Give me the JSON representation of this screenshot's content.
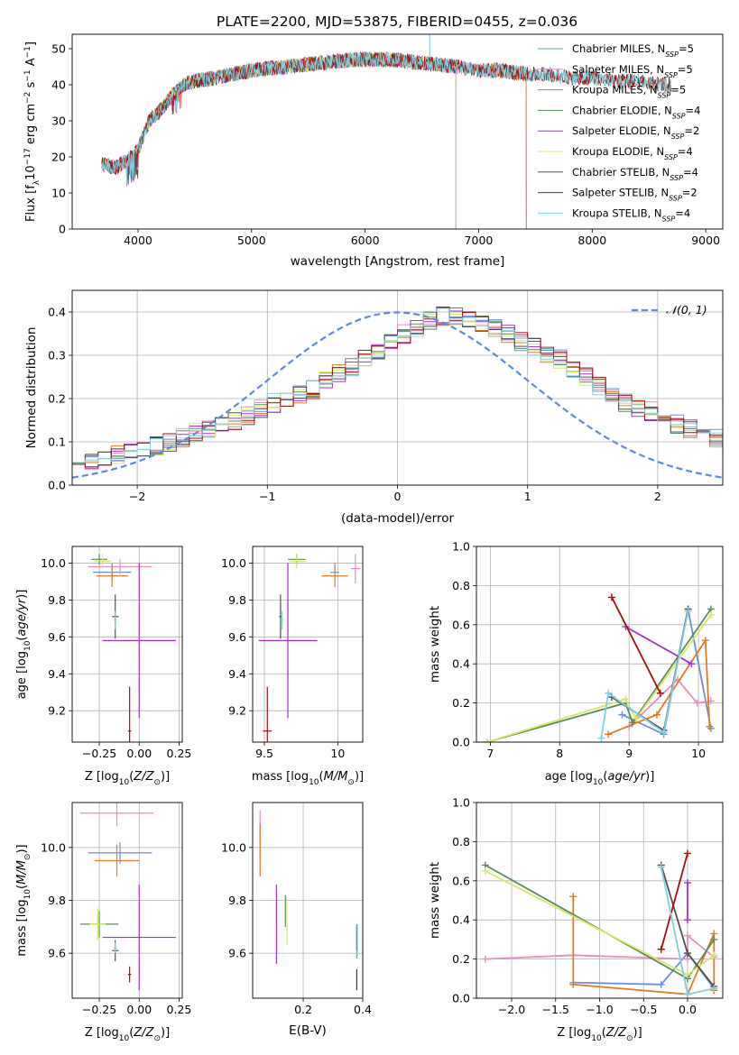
{
  "figure": {
    "title": "PLATE=2200, MJD=53875, FIBERID=0455, z=0.036"
  },
  "colors": {
    "Chabrier MILES": "#6a8fd8",
    "Salpeter MILES": "#e88cc0",
    "Kroupa MILES": "#e07b22",
    "Chabrier ELODIE": "#5a8a5a",
    "Salpeter ELODIE": "#a632c8",
    "Kroupa ELODIE": "#d8e860",
    "Chabrier STELIB": "#505050",
    "Salpeter STELIB": "#a01010",
    "Kroupa STELIB": "#80d0e0"
  },
  "chart_data": [
    {
      "id": "spectrum",
      "type": "line",
      "xlabel": "wavelength [Angstrom, rest frame]",
      "ylabel": "Flux [f_λ10^-17 erg cm^-2 s^-1 A^-1]",
      "xlim": [
        3420,
        9150
      ],
      "ylim": [
        0,
        54
      ],
      "xticks": [
        4000,
        5000,
        6000,
        7000,
        8000,
        9000
      ],
      "yticks": [
        0,
        10,
        20,
        30,
        40,
        50
      ],
      "grid": false,
      "legend_position": "top-right",
      "legend": [
        "Chabrier MILES, N_SSP=5",
        "Salpeter MILES, N_SSP=5",
        "Kroupa MILES, N_SSP=5",
        "Chabrier ELODIE, N_SSP=4",
        "Salpeter ELODIE, N_SSP=2",
        "Kroupa ELODIE, N_SSP=4",
        "Chabrier STELIB, N_SSP=4",
        "Salpeter STELIB, N_SSP=2",
        "Kroupa STELIB, N_SSP=4"
      ],
      "continuum": {
        "x": [
          3680,
          3800,
          3900,
          4000,
          4100,
          4200,
          4300,
          4400,
          4500,
          4700,
          5000,
          5300,
          5600,
          5900,
          6200,
          6500,
          6800,
          7000,
          7200,
          7400,
          7600,
          7800,
          8000,
          8200,
          8400,
          8600,
          8700
        ],
        "y": [
          18,
          17,
          19,
          22,
          30,
          33,
          37,
          40,
          41,
          42,
          44,
          45,
          46,
          47,
          47,
          46,
          45,
          44,
          44,
          43,
          43,
          42,
          42,
          41,
          41,
          40,
          40
        ],
        "extent": {
          "Chabrier MILES": [
            3680,
            7420
          ],
          "Salpeter MILES": [
            3680,
            7420
          ],
          "Kroupa MILES": [
            3680,
            7420
          ],
          "Chabrier ELODIE": [
            3680,
            6800
          ],
          "Salpeter ELODIE": [
            3680,
            6800
          ],
          "Kroupa ELODIE": [
            3680,
            6800
          ],
          "Chabrier STELIB": [
            3680,
            8700
          ],
          "Salpeter STELIB": [
            3680,
            8700
          ],
          "Kroupa STELIB": [
            3680,
            8700
          ]
        }
      }
    },
    {
      "id": "residuals",
      "type": "histogram",
      "xlabel": "(data-model)/error",
      "ylabel": "Normed distribution",
      "xlim": [
        -2.5,
        2.5
      ],
      "ylim": [
        0,
        0.45
      ],
      "xticks": [
        -2,
        -1,
        0,
        1,
        2
      ],
      "yticks": [
        0.0,
        0.1,
        0.2,
        0.3,
        0.4
      ],
      "grid": true,
      "legend_position": "top-right",
      "reference_curve": "𝒩(0, 1)",
      "bin_edges_start": -2.5,
      "bin_width": 0.1,
      "envelope": [
        0.05,
        0.055,
        0.06,
        0.07,
        0.075,
        0.08,
        0.09,
        0.1,
        0.11,
        0.12,
        0.13,
        0.14,
        0.15,
        0.16,
        0.175,
        0.19,
        0.2,
        0.21,
        0.22,
        0.24,
        0.26,
        0.27,
        0.29,
        0.31,
        0.33,
        0.35,
        0.36,
        0.38,
        0.39,
        0.39,
        0.38,
        0.37,
        0.36,
        0.35,
        0.33,
        0.32,
        0.3,
        0.29,
        0.27,
        0.25,
        0.23,
        0.21,
        0.19,
        0.18,
        0.17,
        0.15,
        0.14,
        0.13,
        0.12,
        0.11,
        0.1,
        0.09,
        0.09,
        0.08,
        0.075,
        0.07,
        0.065,
        0.06,
        0.055,
        0.05
      ]
    },
    {
      "id": "age-vs-Z",
      "type": "scatter",
      "xlabel": "Z [log10(Z/Z⊙)]",
      "ylabel": "age [log10(age/yr)]",
      "xlim": [
        -0.42,
        0.27
      ],
      "ylim": [
        9.03,
        10.09
      ],
      "xticks": [
        -0.25,
        0.0,
        0.25
      ],
      "xticklabels": [
        "−0.25",
        "0.00",
        "0.25"
      ],
      "yticks": [
        9.2,
        9.4,
        9.6,
        9.8,
        10.0
      ],
      "grid": true,
      "points": [
        {
          "model": "Chabrier MILES",
          "x": -0.17,
          "y": 9.95,
          "xerr": 0.12,
          "yerr": 0.05
        },
        {
          "model": "Salpeter MILES",
          "x": -0.12,
          "y": 9.98,
          "xerr": 0.2,
          "yerr": 0.04
        },
        {
          "model": "Kroupa MILES",
          "x": -0.17,
          "y": 9.93,
          "xerr": 0.1,
          "yerr": 0.06
        },
        {
          "model": "Chabrier ELODIE",
          "x": -0.25,
          "y": 10.02,
          "xerr": 0.05,
          "yerr": 0.03
        },
        {
          "model": "Salpeter ELODIE",
          "x": 0.0,
          "y": 9.58,
          "xerr": 0.23,
          "yerr": 0.42
        },
        {
          "model": "Kroupa ELODIE",
          "x": -0.23,
          "y": 10.01,
          "xerr": 0.05,
          "yerr": 0.04
        },
        {
          "model": "Chabrier STELIB",
          "x": -0.15,
          "y": 9.71,
          "xerr": 0.02,
          "yerr": 0.12
        },
        {
          "model": "Salpeter STELIB",
          "x": -0.06,
          "y": 9.09,
          "xerr": 0.01,
          "yerr": 0.24
        },
        {
          "model": "Kroupa STELIB",
          "x": -0.15,
          "y": 9.69,
          "xerr": 0.01,
          "yerr": 0.05
        }
      ]
    },
    {
      "id": "age-vs-mass",
      "type": "scatter",
      "xlabel": "mass [log10(M/M⊙)]",
      "ylabel": "",
      "xlim": [
        9.42,
        10.17
      ],
      "ylim": [
        9.03,
        10.09
      ],
      "xticks": [
        9.5,
        10.0
      ],
      "yticks": [
        9.2,
        9.4,
        9.6,
        9.8,
        10.0
      ],
      "grid": true,
      "points": [
        {
          "model": "Chabrier MILES",
          "x": 9.98,
          "y": 9.95,
          "xerr": 0.03,
          "yerr": 0.05
        },
        {
          "model": "Salpeter MILES",
          "x": 10.12,
          "y": 9.97,
          "xerr": 0.03,
          "yerr": 0.08
        },
        {
          "model": "Kroupa MILES",
          "x": 9.98,
          "y": 9.93,
          "xerr": 0.09,
          "yerr": 0.06
        },
        {
          "model": "Chabrier ELODIE",
          "x": 9.72,
          "y": 10.02,
          "xerr": 0.06,
          "yerr": 0.03
        },
        {
          "model": "Salpeter ELODIE",
          "x": 9.66,
          "y": 9.58,
          "xerr": 0.2,
          "yerr": 0.42
        },
        {
          "model": "Kroupa ELODIE",
          "x": 9.72,
          "y": 10.01,
          "xerr": 0.05,
          "yerr": 0.04
        },
        {
          "model": "Chabrier STELIB",
          "x": 9.61,
          "y": 9.71,
          "xerr": 0.01,
          "yerr": 0.12
        },
        {
          "model": "Salpeter STELIB",
          "x": 9.52,
          "y": 9.09,
          "xerr": 0.03,
          "yerr": 0.24
        },
        {
          "model": "Kroupa STELIB",
          "x": 9.62,
          "y": 9.69,
          "xerr": 0.01,
          "yerr": 0.05
        }
      ]
    },
    {
      "id": "weight-vs-age",
      "type": "line",
      "xlabel": "age [log10(age/yr)]",
      "ylabel": "mass weight",
      "xlim": [
        6.8,
        10.35
      ],
      "ylim": [
        0,
        1.0
      ],
      "xticks": [
        7,
        8,
        9,
        10
      ],
      "yticks": [
        0.0,
        0.2,
        0.4,
        0.6,
        0.8,
        1.0
      ],
      "grid": true,
      "series": [
        {
          "model": "Chabrier MILES",
          "x": [
            8.9,
            9.5,
            9.85,
            10.18
          ],
          "y": [
            0.14,
            0.04,
            0.68,
            0.07
          ]
        },
        {
          "model": "Salpeter MILES",
          "x": [
            9.0,
            9.7,
            9.98,
            10.18
          ],
          "y": [
            0.08,
            0.32,
            0.2,
            0.21
          ]
        },
        {
          "model": "Kroupa MILES",
          "x": [
            8.7,
            9.4,
            10.1,
            10.16
          ],
          "y": [
            0.04,
            0.14,
            0.52,
            0.08
          ]
        },
        {
          "model": "Chabrier ELODIE",
          "x": [
            6.95,
            8.95,
            9.05,
            10.18
          ],
          "y": [
            0.0,
            0.2,
            0.1,
            0.68
          ]
        },
        {
          "model": "Salpeter ELODIE",
          "x": [
            8.95,
            9.9
          ],
          "y": [
            0.59,
            0.4
          ]
        },
        {
          "model": "Kroupa ELODIE",
          "x": [
            6.95,
            8.95,
            9.1,
            10.18
          ],
          "y": [
            0.0,
            0.22,
            0.12,
            0.65
          ]
        },
        {
          "model": "Chabrier STELIB",
          "x": [
            8.75,
            9.5,
            9.85
          ],
          "y": [
            0.23,
            0.06,
            0.68
          ]
        },
        {
          "model": "Salpeter STELIB",
          "x": [
            8.75,
            9.45
          ],
          "y": [
            0.74,
            0.25
          ]
        },
        {
          "model": "Kroupa STELIB",
          "x": [
            8.6,
            8.7,
            9.5,
            9.85
          ],
          "y": [
            0.02,
            0.25,
            0.05,
            0.67
          ]
        }
      ]
    },
    {
      "id": "mass-vs-Z",
      "type": "scatter",
      "xlabel": "Z [log10(Z/Z⊙)]",
      "ylabel": "mass [log10(M/M⊙)]",
      "xlim": [
        -0.42,
        0.27
      ],
      "ylim": [
        9.43,
        10.17
      ],
      "xticks": [
        -0.25,
        0.0,
        0.25
      ],
      "xticklabels": [
        "−0.25",
        "0.00",
        "0.25"
      ],
      "yticks": [
        9.6,
        9.8,
        10.0
      ],
      "grid": true,
      "points": [
        {
          "model": "Chabrier MILES",
          "x": -0.12,
          "y": 9.98,
          "xerr": 0.2,
          "yerr": 0.04
        },
        {
          "model": "Salpeter MILES",
          "x": -0.14,
          "y": 10.13,
          "xerr": 0.23,
          "yerr": 0.05
        },
        {
          "model": "Kroupa MILES",
          "x": -0.14,
          "y": 9.95,
          "xerr": 0.14,
          "yerr": 0.06
        },
        {
          "model": "Chabrier ELODIE",
          "x": -0.25,
          "y": 9.71,
          "xerr": 0.12,
          "yerr": 0.05
        },
        {
          "model": "Salpeter ELODIE",
          "x": 0.0,
          "y": 9.66,
          "xerr": 0.23,
          "yerr": 0.2
        },
        {
          "model": "Kroupa ELODIE",
          "x": -0.26,
          "y": 9.71,
          "xerr": 0.05,
          "yerr": 0.06
        },
        {
          "model": "Chabrier STELIB",
          "x": -0.15,
          "y": 9.61,
          "xerr": 0.02,
          "yerr": 0.04
        },
        {
          "model": "Salpeter STELIB",
          "x": -0.06,
          "y": 9.52,
          "xerr": 0.01,
          "yerr": 0.03
        },
        {
          "model": "Kroupa STELIB",
          "x": -0.15,
          "y": 9.62,
          "xerr": 0.01,
          "yerr": 0.02
        }
      ]
    },
    {
      "id": "mass-vs-EBV",
      "type": "scatter",
      "xlabel": "E(B-V)",
      "ylabel": "",
      "xlim": [
        0.03,
        0.4
      ],
      "ylim": [
        9.43,
        10.17
      ],
      "xticks": [
        0.2,
        0.4
      ],
      "yticks": [
        9.6,
        9.8,
        10.0
      ],
      "grid": true,
      "points": [
        {
          "model": "Chabrier MILES",
          "x": 0.38,
          "y": 9.64,
          "xerr": 0.0,
          "yerr": 0.06
        },
        {
          "model": "Salpeter MILES",
          "x": 0.055,
          "y": 10.05,
          "xerr": 0.0,
          "yerr": 0.09
        },
        {
          "model": "Kroupa MILES",
          "x": 0.055,
          "y": 9.99,
          "xerr": 0.0,
          "yerr": 0.1
        },
        {
          "model": "Chabrier ELODIE",
          "x": 0.14,
          "y": 9.76,
          "xerr": 0.0,
          "yerr": 0.06
        },
        {
          "model": "Salpeter ELODIE",
          "x": 0.11,
          "y": 9.71,
          "xerr": 0.0,
          "yerr": 0.15
        },
        {
          "model": "Kroupa ELODIE",
          "x": 0.145,
          "y": 9.72,
          "xerr": 0.0,
          "yerr": 0.09
        },
        {
          "model": "Chabrier STELIB",
          "x": 0.38,
          "y": 9.66,
          "xerr": 0.0,
          "yerr": 0.05
        },
        {
          "model": "Salpeter STELIB",
          "x": 0.38,
          "y": 9.5,
          "xerr": 0.0,
          "yerr": 0.04
        },
        {
          "model": "Kroupa STELIB",
          "x": 0.382,
          "y": 9.65,
          "xerr": 0.0,
          "yerr": 0.06
        }
      ]
    },
    {
      "id": "weight-vs-Z",
      "type": "line",
      "xlabel": "Z [log10(Z/Z⊙)]",
      "ylabel": "mass weight",
      "xlim": [
        -2.4,
        0.4
      ],
      "ylim": [
        0,
        1.0
      ],
      "xticks": [
        -2.0,
        -1.5,
        -1.0,
        -0.5,
        0.0
      ],
      "xticklabels": [
        "−2.0",
        "−1.5",
        "−1.0",
        "−0.5",
        "0.0"
      ],
      "yticks": [
        0.0,
        0.2,
        0.4,
        0.6,
        0.8,
        1.0
      ],
      "grid": true,
      "series": [
        {
          "model": "Chabrier MILES",
          "x": [
            -1.3,
            -0.3,
            0.0,
            0.3
          ],
          "y": [
            0.08,
            0.07,
            0.23,
            0.05
          ]
        },
        {
          "model": "Salpeter MILES",
          "x": [
            -2.3,
            -1.3,
            0.0,
            0.0,
            0.3
          ],
          "y": [
            0.2,
            0.22,
            0.2,
            0.32,
            0.21
          ]
        },
        {
          "model": "Kroupa MILES",
          "x": [
            -1.3,
            -1.3,
            0.0,
            0.3,
            0.3
          ],
          "y": [
            0.52,
            0.07,
            0.02,
            0.33,
            0.04
          ]
        },
        {
          "model": "Chabrier ELODIE",
          "x": [
            -2.3,
            0.0,
            0.3
          ],
          "y": [
            0.68,
            0.1,
            0.3
          ]
        },
        {
          "model": "Salpeter ELODIE",
          "x": [
            0.0,
            0.0
          ],
          "y": [
            0.59,
            0.4
          ]
        },
        {
          "model": "Kroupa ELODIE",
          "x": [
            -2.3,
            0.0,
            0.3
          ],
          "y": [
            0.65,
            0.12,
            0.22
          ]
        },
        {
          "model": "Chabrier STELIB",
          "x": [
            -0.3,
            0.0,
            0.3
          ],
          "y": [
            0.68,
            0.23,
            0.06
          ]
        },
        {
          "model": "Salpeter STELIB",
          "x": [
            -0.3,
            0.0
          ],
          "y": [
            0.25,
            0.74
          ]
        },
        {
          "model": "Kroupa STELIB",
          "x": [
            -0.3,
            0.0,
            0.3
          ],
          "y": [
            0.67,
            0.02,
            0.05
          ]
        }
      ]
    }
  ]
}
